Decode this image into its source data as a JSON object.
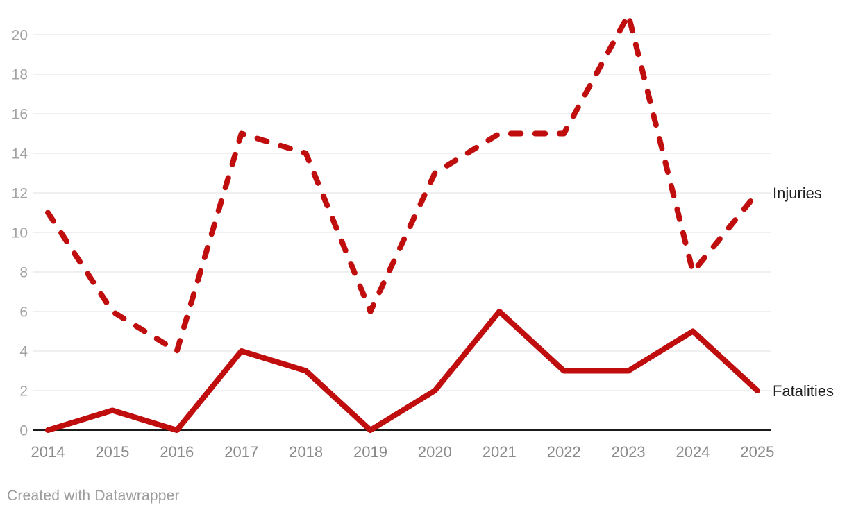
{
  "footer": {
    "attribution": "Created with Datawrapper"
  },
  "chart_data": {
    "type": "line",
    "x": [
      2014,
      2015,
      2016,
      2017,
      2018,
      2019,
      2020,
      2021,
      2022,
      2023,
      2024,
      2025
    ],
    "series": [
      {
        "name": "Injuries",
        "style": "dashed",
        "values": [
          11,
          6,
          4,
          15,
          14,
          6,
          13,
          15,
          15,
          21,
          8,
          12
        ]
      },
      {
        "name": "Fatalities",
        "style": "solid",
        "values": [
          0,
          1,
          0,
          4,
          3,
          0,
          2,
          6,
          3,
          3,
          5,
          2
        ]
      }
    ],
    "title": "",
    "xlabel": "",
    "ylabel": "",
    "ylim": [
      0,
      21
    ],
    "yticks": [
      0,
      2,
      4,
      6,
      8,
      10,
      12,
      14,
      16,
      18,
      20
    ],
    "grid": "horizontal",
    "legend_position": "line-end-labels-right",
    "colors": {
      "line": "#c00d0d",
      "grid": "#e6e6e6",
      "zero_axis": "#1a1a1a",
      "ytick_label": "#a3a3a3",
      "xtick_label": "#8a8a8a",
      "series_label": "#1d1d1d",
      "attribution": "#9b9b9b"
    }
  }
}
